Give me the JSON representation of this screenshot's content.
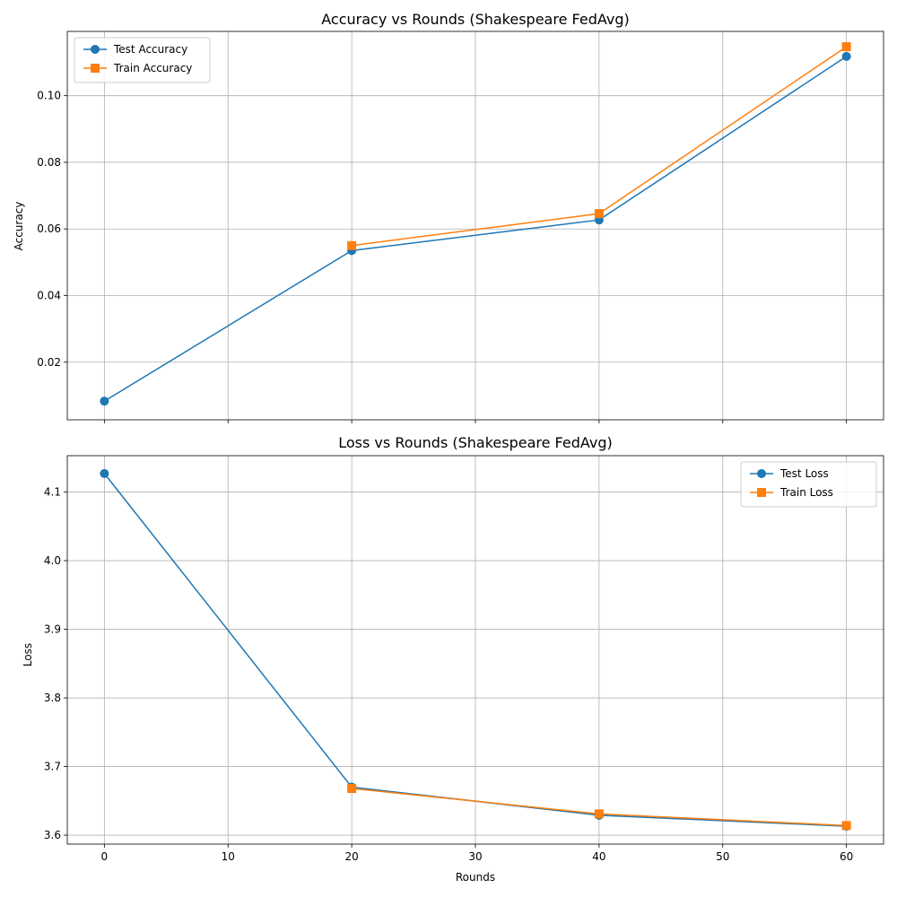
{
  "chart_data": [
    {
      "type": "line",
      "title": "Accuracy vs Rounds (Shakespeare FedAvg)",
      "xlabel": "",
      "ylabel": "Accuracy",
      "xlim": [
        -3,
        63
      ],
      "ylim": [
        0.0027,
        0.1193
      ],
      "xticks": [
        0,
        10,
        20,
        30,
        40,
        50,
        60
      ],
      "xtick_labels_visible": false,
      "yticks": [
        0.02,
        0.04,
        0.06,
        0.08,
        0.1
      ],
      "ytick_labels": [
        "0.02",
        "0.04",
        "0.06",
        "0.08",
        "0.10"
      ],
      "grid": true,
      "legend_position": "upper-left",
      "series": [
        {
          "name": "Test Accuracy",
          "color": "#1f77b4",
          "marker": "circle",
          "x": [
            0,
            20,
            40,
            60
          ],
          "y": [
            0.0083,
            0.0535,
            0.0627,
            0.1118
          ]
        },
        {
          "name": "Train Accuracy",
          "color": "#ff7f0e",
          "marker": "square",
          "x": [
            20,
            40,
            60
          ],
          "y": [
            0.055,
            0.0646,
            0.1147
          ]
        }
      ]
    },
    {
      "type": "line",
      "title": "Loss vs Rounds (Shakespeare FedAvg)",
      "xlabel": "Rounds",
      "ylabel": "Loss",
      "xlim": [
        -3,
        63
      ],
      "ylim": [
        3.587,
        4.153
      ],
      "xticks": [
        0,
        10,
        20,
        30,
        40,
        50,
        60
      ],
      "xtick_labels": [
        "0",
        "10",
        "20",
        "30",
        "40",
        "50",
        "60"
      ],
      "xtick_labels_visible": true,
      "yticks": [
        3.6,
        3.7,
        3.8,
        3.9,
        4.0,
        4.1
      ],
      "ytick_labels": [
        "3.6",
        "3.7",
        "3.8",
        "3.9",
        "4.0",
        "4.1"
      ],
      "grid": true,
      "legend_position": "upper-right",
      "series": [
        {
          "name": "Test Loss",
          "color": "#1f77b4",
          "marker": "circle",
          "x": [
            0,
            20,
            40,
            60
          ],
          "y": [
            4.127,
            3.67,
            3.629,
            3.613
          ]
        },
        {
          "name": "Train Loss",
          "color": "#ff7f0e",
          "marker": "square",
          "x": [
            20,
            40,
            60
          ],
          "y": [
            3.668,
            3.631,
            3.614
          ]
        }
      ]
    }
  ]
}
